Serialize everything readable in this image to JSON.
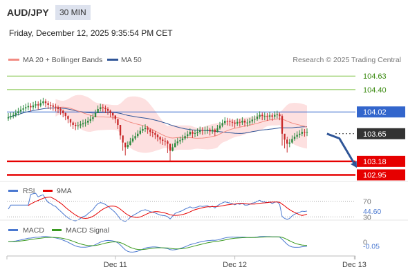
{
  "header": {
    "symbol": "AUD/JPY",
    "timeframe": "30 MIN",
    "datetime": "Friday, December 12, 2025 9:35:54 PM CET",
    "credit": "Research © 2025 Trading Central"
  },
  "colors": {
    "up": "#2b8a3e",
    "down": "#c92a2a",
    "bollinger_fill": "#fde0e0",
    "ma20": "#f28b82",
    "ma50": "#2f5597",
    "resistance": "#7cc242",
    "support": "#e60000",
    "pivot": "#3366cc",
    "current": "#333333",
    "rsi": "#4a78d0",
    "rsi_ma": "#e60000",
    "macd": "#4a78d0",
    "macd_signal": "#3a9a20"
  },
  "chart_data": [
    {
      "type": "candlestick",
      "name": "price",
      "legend": [
        {
          "label": "MA 20 + Bollinger Bands",
          "color": "#f28b82"
        },
        {
          "label": "MA 50",
          "color": "#2f5597"
        }
      ],
      "ylim": [
        102.85,
        104.75
      ],
      "x_ticks": [
        {
          "label": "Dec 11",
          "index": 43
        },
        {
          "label": "Dec 12",
          "index": 91
        },
        {
          "label": "Dec 13",
          "index": 139
        }
      ],
      "levels": [
        {
          "value": 104.63,
          "label": "104.63",
          "kind": "resistance"
        },
        {
          "value": 104.4,
          "label": "104.40",
          "kind": "resistance"
        },
        {
          "value": 104.02,
          "label": "104.02",
          "kind": "pivot"
        },
        {
          "value": 103.65,
          "label": "103.65",
          "kind": "current"
        },
        {
          "value": 103.18,
          "label": "103.18",
          "kind": "support"
        },
        {
          "value": 102.95,
          "label": "102.95",
          "kind": "support"
        }
      ],
      "forecast": [
        [
          128,
          103.65
        ],
        [
          133,
          103.57
        ],
        [
          140,
          103.07
        ]
      ],
      "close": [
        103.93,
        103.95,
        103.97,
        104.0,
        104.03,
        104.06,
        104.08,
        104.1,
        104.12,
        104.1,
        104.13,
        104.15,
        104.13,
        104.17,
        104.2,
        104.17,
        104.14,
        104.13,
        104.11,
        104.1,
        104.07,
        104.04,
        104.0,
        103.95,
        103.9,
        103.84,
        103.8,
        103.78,
        103.79,
        103.81,
        103.83,
        103.84,
        103.87,
        103.9,
        103.93,
        104.0,
        104.07,
        104.1,
        104.09,
        104.07,
        104.04,
        104.0,
        103.96,
        103.9,
        103.8,
        103.62,
        103.5,
        103.42,
        103.46,
        103.52,
        103.57,
        103.61,
        103.65,
        103.7,
        103.73,
        103.75,
        103.72,
        103.68,
        103.66,
        103.63,
        103.59,
        103.55,
        103.53,
        103.52,
        103.48,
        103.36,
        103.42,
        103.49,
        103.52,
        103.54,
        103.57,
        103.61,
        103.64,
        103.68,
        103.65,
        103.66,
        103.68,
        103.71,
        103.7,
        103.71,
        103.72,
        103.69,
        103.72,
        103.68,
        103.74,
        103.79,
        103.83,
        103.87,
        103.86,
        103.85,
        103.84,
        103.82,
        103.85,
        103.84,
        103.87,
        103.84,
        103.84,
        103.86,
        103.89,
        103.9,
        103.94,
        103.97,
        103.95,
        103.95,
        103.94,
        103.96,
        103.94,
        103.97,
        103.98,
        103.95,
        103.65,
        103.55,
        103.48,
        103.5,
        103.56,
        103.6,
        103.63,
        103.65,
        103.68,
        103.67,
        103.68
      ],
      "high": [
        104.0,
        104.01,
        104.02,
        104.06,
        104.09,
        104.12,
        104.14,
        104.16,
        104.18,
        104.17,
        104.19,
        104.21,
        104.2,
        104.23,
        104.26,
        104.24,
        104.21,
        104.19,
        104.17,
        104.16,
        104.13,
        104.1,
        104.06,
        104.01,
        103.96,
        103.9,
        103.86,
        103.84,
        103.85,
        103.87,
        103.89,
        103.9,
        103.93,
        103.96,
        103.99,
        104.06,
        104.13,
        104.16,
        104.15,
        104.13,
        104.1,
        104.06,
        104.02,
        103.96,
        103.86,
        103.68,
        103.56,
        103.48,
        103.52,
        103.58,
        103.63,
        103.67,
        103.71,
        103.76,
        103.79,
        103.81,
        103.78,
        103.74,
        103.72,
        103.69,
        103.65,
        103.61,
        103.59,
        103.58,
        103.54,
        103.42,
        103.48,
        103.55,
        103.58,
        103.6,
        103.63,
        103.67,
        103.7,
        103.74,
        103.71,
        103.72,
        103.74,
        103.77,
        103.76,
        103.77,
        103.78,
        103.75,
        103.78,
        103.74,
        103.8,
        103.85,
        103.89,
        103.93,
        103.92,
        103.91,
        103.9,
        103.88,
        103.91,
        103.9,
        103.93,
        103.9,
        103.9,
        103.92,
        103.95,
        103.96,
        104.0,
        104.03,
        104.01,
        104.01,
        104.0,
        104.02,
        104.0,
        104.03,
        104.04,
        104.01,
        103.98,
        103.65,
        103.6,
        103.56,
        103.62,
        103.66,
        103.69,
        103.71,
        103.74,
        103.73,
        103.74
      ],
      "low": [
        103.87,
        103.89,
        103.91,
        103.93,
        103.96,
        103.99,
        104.01,
        104.03,
        104.05,
        104.03,
        104.06,
        104.08,
        104.06,
        104.1,
        104.13,
        104.1,
        104.07,
        104.06,
        104.04,
        104.03,
        104.0,
        103.97,
        103.93,
        103.88,
        103.83,
        103.77,
        103.73,
        103.71,
        103.72,
        103.74,
        103.76,
        103.77,
        103.8,
        103.83,
        103.86,
        103.93,
        104.0,
        104.03,
        104.02,
        104.0,
        103.97,
        103.93,
        103.89,
        103.83,
        103.73,
        103.55,
        103.36,
        103.28,
        103.39,
        103.45,
        103.5,
        103.54,
        103.58,
        103.63,
        103.66,
        103.68,
        103.65,
        103.61,
        103.59,
        103.56,
        103.52,
        103.48,
        103.46,
        103.45,
        103.32,
        103.18,
        103.35,
        103.42,
        103.45,
        103.47,
        103.5,
        103.54,
        103.57,
        103.61,
        103.58,
        103.59,
        103.61,
        103.64,
        103.63,
        103.64,
        103.65,
        103.62,
        103.65,
        103.61,
        103.67,
        103.72,
        103.76,
        103.8,
        103.79,
        103.78,
        103.77,
        103.75,
        103.78,
        103.77,
        103.8,
        103.77,
        103.77,
        103.79,
        103.82,
        103.83,
        103.87,
        103.9,
        103.88,
        103.88,
        103.87,
        103.89,
        103.87,
        103.9,
        103.91,
        103.88,
        103.45,
        103.4,
        103.33,
        103.42,
        103.48,
        103.53,
        103.56,
        103.58,
        103.61,
        103.6,
        103.61
      ]
    },
    {
      "type": "line",
      "name": "rsi",
      "legend": [
        {
          "label": "RSI",
          "color": "#4a78d0"
        },
        {
          "label": "9MA",
          "color": "#e60000"
        }
      ],
      "ylim": [
        27,
        73
      ],
      "y_labels": [
        {
          "value": 70,
          "label": "70"
        },
        {
          "value": 44.6,
          "label": "44.60"
        },
        {
          "value": 30,
          "label": "30"
        }
      ]
    },
    {
      "type": "line",
      "name": "macd",
      "legend": [
        {
          "label": "MACD",
          "color": "#4a78d0"
        },
        {
          "label": "MACD Signal",
          "color": "#3a9a20"
        }
      ],
      "ylim": [
        -0.16,
        0.06
      ],
      "y_labels": [
        {
          "value": 0.0,
          "label": "0"
        },
        {
          "value": -0.05,
          "label": "-0.05"
        }
      ]
    }
  ]
}
